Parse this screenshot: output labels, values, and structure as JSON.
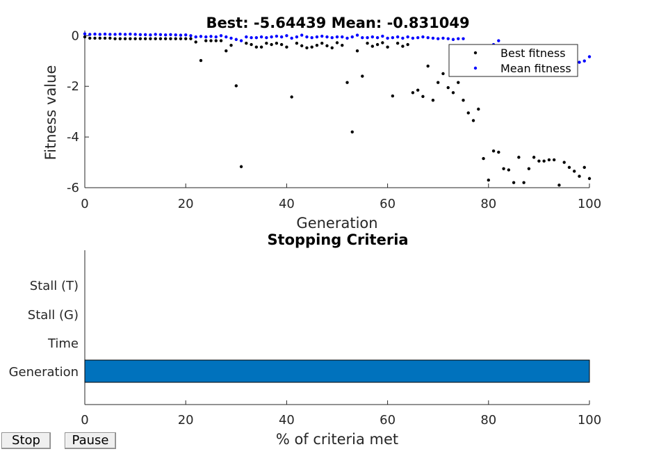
{
  "colors": {
    "best": "#000000",
    "mean": "#0000ff",
    "bar": "#0072bd"
  },
  "buttons": {
    "stop": "Stop",
    "pause": "Pause"
  },
  "chart_data": [
    {
      "type": "scatter",
      "title": "Best: -5.64439 Mean: -0.831049",
      "xlabel": "Generation",
      "ylabel": "Fitness value",
      "xlim": [
        0,
        100
      ],
      "ylim": [
        -6,
        0.2
      ],
      "xticks": [
        "0",
        "20",
        "40",
        "60",
        "80",
        "100"
      ],
      "yticks": [
        "0",
        "-2",
        "-4",
        "-6"
      ],
      "legend": {
        "position": "top-right",
        "entries": [
          "Best fitness",
          "Mean fitness"
        ]
      },
      "series": [
        {
          "name": "Best fitness",
          "x": [
            0,
            1,
            2,
            3,
            4,
            5,
            6,
            7,
            8,
            9,
            10,
            11,
            12,
            13,
            14,
            15,
            16,
            17,
            18,
            19,
            20,
            21,
            22,
            23,
            24,
            25,
            26,
            27,
            28,
            29,
            30,
            31,
            32,
            33,
            34,
            35,
            36,
            37,
            38,
            39,
            40,
            41,
            42,
            43,
            44,
            45,
            46,
            47,
            48,
            49,
            50,
            51,
            52,
            53,
            54,
            55,
            56,
            57,
            58,
            59,
            60,
            61,
            62,
            63,
            64,
            65,
            66,
            67,
            68,
            69,
            70,
            71,
            72,
            73,
            74,
            75,
            76,
            77,
            78,
            79,
            80,
            81,
            82,
            83,
            84,
            85,
            86,
            87,
            88,
            89,
            90,
            91,
            92,
            93,
            94,
            95,
            96,
            97,
            98,
            99,
            100
          ],
          "y": [
            -0.05,
            -0.1,
            -0.1,
            -0.1,
            -0.1,
            -0.1,
            -0.12,
            -0.12,
            -0.12,
            -0.12,
            -0.12,
            -0.12,
            -0.12,
            -0.12,
            -0.12,
            -0.12,
            -0.12,
            -0.12,
            -0.12,
            -0.12,
            -0.12,
            -0.12,
            -0.25,
            -0.98,
            -0.2,
            -0.2,
            -0.2,
            -0.2,
            -0.6,
            -0.38,
            -1.98,
            -5.17,
            -0.3,
            -0.35,
            -0.45,
            -0.45,
            -0.3,
            -0.35,
            -0.3,
            -0.35,
            -0.45,
            -2.42,
            -0.3,
            -0.4,
            -0.48,
            -0.45,
            -0.38,
            -0.3,
            -0.4,
            -0.48,
            -0.28,
            -0.38,
            -1.85,
            -3.8,
            -0.6,
            -1.6,
            -0.3,
            -0.42,
            -0.35,
            -0.28,
            -0.45,
            -2.38,
            -0.3,
            -0.42,
            -0.35,
            -2.25,
            -2.15,
            -2.4,
            -1.2,
            -2.55,
            -1.85,
            -1.5,
            -2.05,
            -2.25,
            -1.85,
            -2.55,
            -3.05,
            -3.35,
            -2.9,
            -4.85,
            -5.7,
            -4.55,
            -4.6,
            -5.25,
            -5.3,
            -5.8,
            -4.8,
            -5.8,
            -5.25,
            -4.8,
            -4.95,
            -4.95,
            -4.9,
            -4.9,
            -5.9,
            -5.0,
            -5.2,
            -5.35,
            -5.55,
            -5.2,
            -5.64
          ]
        },
        {
          "name": "Mean fitness",
          "x": [
            0,
            1,
            2,
            3,
            4,
            5,
            6,
            7,
            8,
            9,
            10,
            11,
            12,
            13,
            14,
            15,
            16,
            17,
            18,
            19,
            20,
            21,
            22,
            23,
            24,
            25,
            26,
            27,
            28,
            29,
            30,
            31,
            32,
            33,
            34,
            35,
            36,
            37,
            38,
            39,
            40,
            41,
            42,
            43,
            44,
            45,
            46,
            47,
            48,
            49,
            50,
            51,
            52,
            53,
            54,
            55,
            56,
            57,
            58,
            59,
            60,
            61,
            62,
            63,
            64,
            65,
            66,
            67,
            68,
            69,
            70,
            71,
            72,
            73,
            74,
            75,
            81,
            82,
            95,
            96,
            97,
            98,
            99,
            100
          ],
          "y": [
            0.07,
            0.05,
            0.06,
            0.05,
            0.06,
            0.05,
            0.05,
            0.06,
            0.05,
            0.06,
            0.05,
            0.04,
            0.04,
            0.03,
            0.05,
            0.04,
            0.03,
            0.04,
            0.03,
            0.02,
            0.03,
            0.0,
            -0.05,
            -0.03,
            -0.05,
            -0.03,
            -0.05,
            0.0,
            -0.05,
            -0.1,
            -0.15,
            -0.2,
            -0.05,
            -0.08,
            -0.08,
            -0.05,
            -0.08,
            -0.05,
            -0.02,
            -0.05,
            0.0,
            -0.1,
            -0.05,
            0.02,
            -0.05,
            -0.08,
            -0.05,
            -0.02,
            -0.05,
            -0.08,
            -0.05,
            -0.05,
            -0.1,
            -0.05,
            0.02,
            -0.08,
            -0.08,
            -0.05,
            -0.08,
            -0.02,
            -0.1,
            -0.08,
            -0.05,
            -0.1,
            -0.05,
            -0.1,
            -0.08,
            -0.05,
            -0.08,
            -0.1,
            -0.12,
            -0.1,
            -0.12,
            -0.15,
            -0.12,
            -0.12,
            -0.35,
            -0.2,
            -1.1,
            -1.15,
            -1.1,
            -1.05,
            -1.0,
            -0.83
          ]
        }
      ]
    },
    {
      "type": "bar",
      "orientation": "horizontal",
      "title": "Stopping Criteria",
      "xlabel": "% of criteria met",
      "xlim": [
        0,
        100
      ],
      "xticks": [
        "0",
        "20",
        "40",
        "60",
        "80",
        "100"
      ],
      "categories": [
        "Stall (T)",
        "Stall (G)",
        "Time",
        "Generation"
      ],
      "values": [
        0,
        0,
        0,
        100
      ]
    }
  ]
}
